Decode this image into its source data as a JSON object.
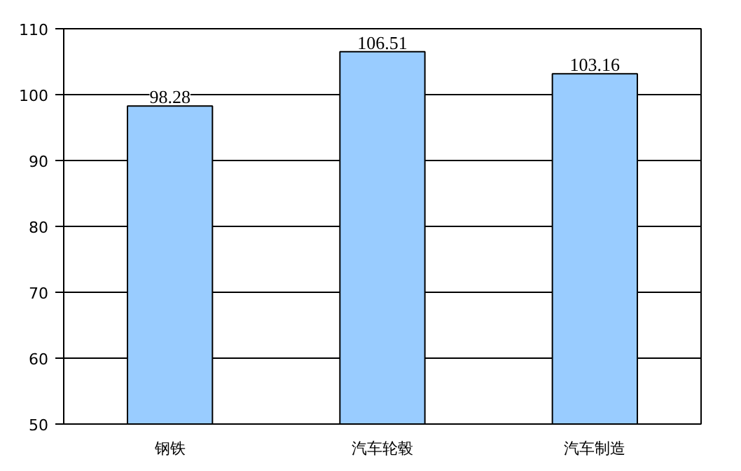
{
  "chart_data": {
    "type": "bar",
    "categories": [
      "钢铁",
      "汽车轮毂",
      "汽车制造"
    ],
    "values": [
      98.28,
      106.51,
      103.16
    ],
    "color": "#99ccff",
    "ylim": [
      50,
      110
    ],
    "yticks": [
      50,
      60,
      70,
      80,
      90,
      100,
      110
    ],
    "grid": "y",
    "data_labels": true
  }
}
